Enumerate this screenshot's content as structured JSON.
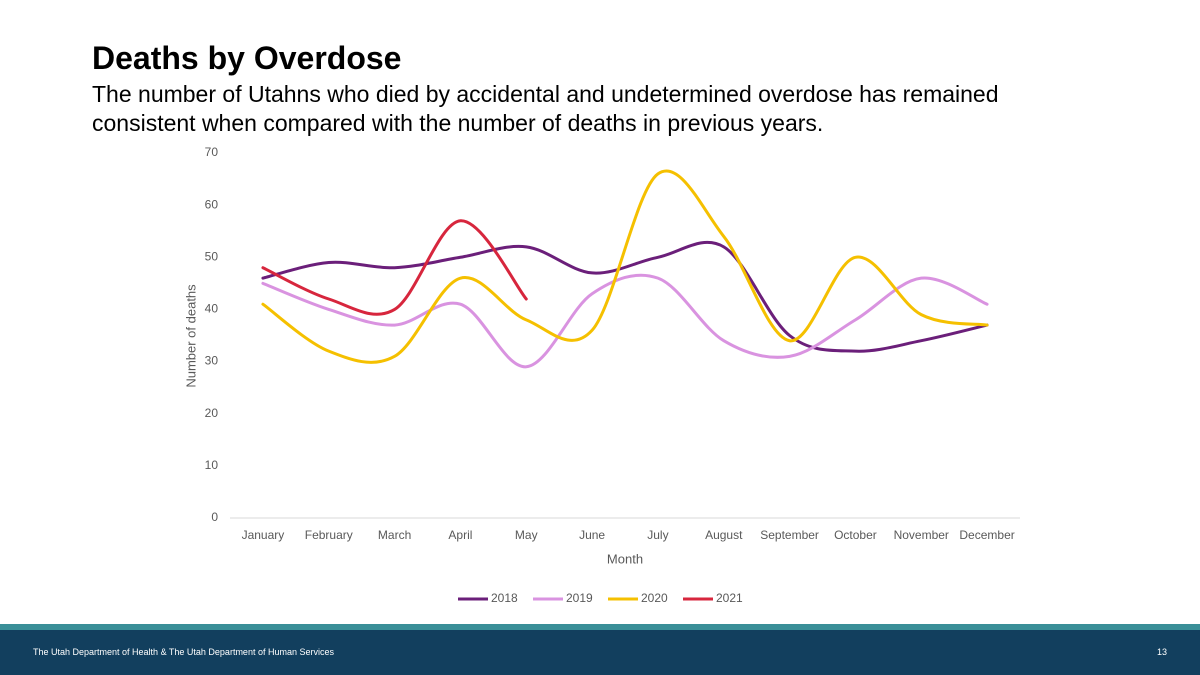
{
  "chart_data": {
    "type": "line",
    "title": "Deaths by Overdose",
    "subtitle": "The number of Utahns who died by accidental and undetermined overdose has remained consistent when compared with the number of deaths in previous years.",
    "x_label": "Month",
    "y_label": "Number of deaths",
    "categories": [
      "January",
      "February",
      "March",
      "April",
      "May",
      "June",
      "July",
      "August",
      "September",
      "October",
      "November",
      "December"
    ],
    "series": [
      {
        "name": "2018",
        "color": "#6b1f7a",
        "values": [
          46,
          49,
          48,
          50,
          52,
          47,
          50,
          52,
          35,
          32,
          34,
          37
        ]
      },
      {
        "name": "2019",
        "color": "#d993e0",
        "values": [
          45,
          40,
          37,
          41,
          29,
          43,
          46,
          34,
          31,
          38,
          46,
          41
        ]
      },
      {
        "name": "2020",
        "color": "#f5c000",
        "values": [
          41,
          32,
          31,
          46,
          38,
          36,
          66,
          54,
          34,
          50,
          39,
          37
        ]
      },
      {
        "name": "2021",
        "color": "#d7263d",
        "values": [
          48,
          42,
          40,
          57,
          42,
          null,
          null,
          null,
          null,
          null,
          null,
          null
        ]
      }
    ],
    "ylim": [
      0,
      70
    ],
    "yticks": [
      0,
      10,
      20,
      30,
      40,
      50,
      60,
      70
    ],
    "smooth": true,
    "grid": false,
    "legend": "bottom"
  },
  "footer": "The Utah Department of Health & The Utah Department of Human Services",
  "page_number": "13"
}
